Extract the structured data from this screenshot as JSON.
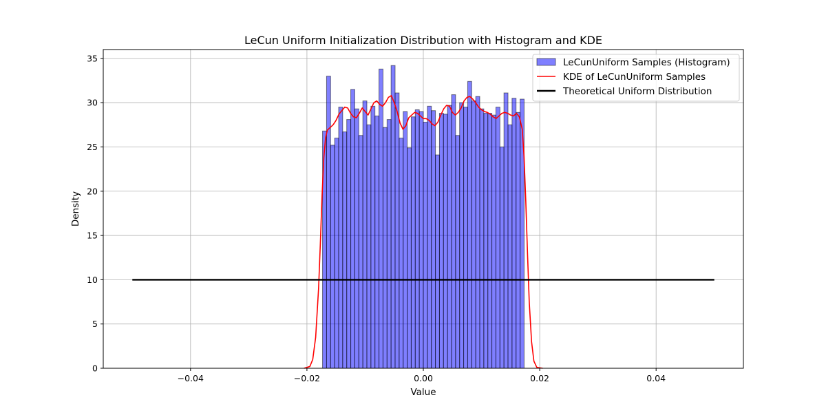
{
  "chart_data": {
    "type": "bar",
    "title": "LeCun Uniform Initialization Distribution with Histogram and KDE",
    "xlabel": "Value",
    "ylabel": "Density",
    "xlim": [
      -0.055,
      0.055
    ],
    "ylim": [
      0,
      36
    ],
    "grid": true,
    "legend_placement": "top-right",
    "x_ticks": [
      -0.04,
      -0.02,
      0.0,
      0.02,
      0.04
    ],
    "x_tick_labels": [
      "−0.04",
      "−0.02",
      "0.00",
      "0.02",
      "0.04"
    ],
    "y_ticks": [
      0,
      5,
      10,
      15,
      20,
      25,
      30,
      35
    ],
    "y_tick_labels": [
      "0",
      "5",
      "10",
      "15",
      "20",
      "25",
      "30",
      "35"
    ],
    "histogram": {
      "name": "LeCunUniform Samples (Histogram)",
      "color": "#0000ff",
      "edge_color": "#000000",
      "x_start": -0.01732,
      "x_end": 0.01732,
      "densities": [
        26.8,
        33.0,
        25.2,
        26.0,
        29.5,
        26.7,
        28.1,
        31.5,
        29.3,
        26.3,
        30.2,
        27.5,
        29.6,
        28.5,
        33.8,
        27.2,
        28.1,
        34.2,
        31.1,
        26.0,
        29.0,
        24.9,
        28.4,
        29.2,
        29.0,
        27.8,
        29.6,
        29.1,
        24.1,
        28.8,
        28.7,
        29.7,
        30.9,
        26.3,
        30.0,
        29.5,
        32.4,
        30.2,
        30.7,
        29.3,
        28.8,
        28.8,
        28.6,
        29.5,
        25.0,
        31.1,
        27.5,
        30.5,
        28.9,
        30.4
      ]
    },
    "kde": {
      "name": "KDE of LeCunUniform Samples",
      "color": "#ff0000",
      "x": [
        -0.0205,
        -0.0195,
        -0.019,
        -0.0185,
        -0.018,
        -0.0177,
        -0.0174,
        -0.0171,
        -0.0168,
        -0.0165,
        -0.016,
        -0.0155,
        -0.015,
        -0.0145,
        -0.014,
        -0.0135,
        -0.013,
        -0.0125,
        -0.012,
        -0.0115,
        -0.011,
        -0.0105,
        -0.01,
        -0.0095,
        -0.009,
        -0.0085,
        -0.008,
        -0.0075,
        -0.007,
        -0.0065,
        -0.006,
        -0.0055,
        -0.005,
        -0.0045,
        -0.004,
        -0.0035,
        -0.003,
        -0.0025,
        -0.002,
        -0.0015,
        -0.001,
        -0.0005,
        0.0,
        0.0005,
        0.001,
        0.0015,
        0.002,
        0.0025,
        0.003,
        0.0035,
        0.004,
        0.0045,
        0.005,
        0.0055,
        0.006,
        0.0065,
        0.007,
        0.0075,
        0.008,
        0.0085,
        0.009,
        0.0095,
        0.01,
        0.0105,
        0.011,
        0.0115,
        0.012,
        0.0125,
        0.013,
        0.0135,
        0.014,
        0.0145,
        0.015,
        0.0155,
        0.016,
        0.0165,
        0.017,
        0.0173,
        0.0176,
        0.0179,
        0.0182,
        0.0186,
        0.019,
        0.0195,
        0.0205
      ],
      "y": [
        0.0,
        0.2,
        1.0,
        3.5,
        9.0,
        14.0,
        19.5,
        23.8,
        26.0,
        26.9,
        27.2,
        27.5,
        28.0,
        28.7,
        29.1,
        29.5,
        29.4,
        28.8,
        28.4,
        28.3,
        28.8,
        29.4,
        29.0,
        28.6,
        29.3,
        30.0,
        30.2,
        29.8,
        29.6,
        30.0,
        30.6,
        30.8,
        30.0,
        29.0,
        27.7,
        27.0,
        27.4,
        28.3,
        28.6,
        28.9,
        28.8,
        28.5,
        28.2,
        28.2,
        28.0,
        27.6,
        27.4,
        27.8,
        28.6,
        29.3,
        29.7,
        29.6,
        28.9,
        28.6,
        28.9,
        29.4,
        30.2,
        30.6,
        30.7,
        30.4,
        30.0,
        29.5,
        29.2,
        29.0,
        28.9,
        28.7,
        28.4,
        28.2,
        28.5,
        28.8,
        28.9,
        28.8,
        28.6,
        28.5,
        28.8,
        28.4,
        27.0,
        24.0,
        19.0,
        13.0,
        7.5,
        3.0,
        0.8,
        0.1,
        0.0
      ]
    },
    "theoretical": {
      "name": "Theoretical Uniform Distribution",
      "color": "#000000",
      "x": [
        -0.05,
        0.05
      ],
      "y": [
        10,
        10
      ]
    },
    "colors": {
      "grid": "#b0b0b0",
      "axes": "#000000",
      "legend_border": "#cccccc"
    }
  }
}
